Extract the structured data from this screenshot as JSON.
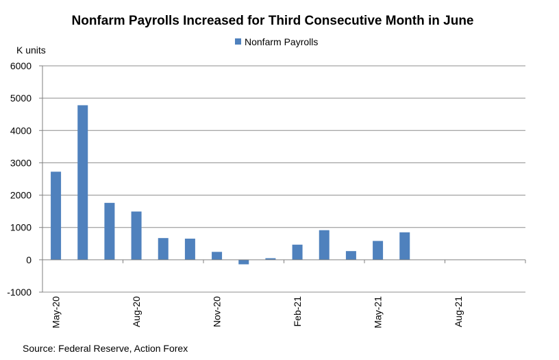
{
  "chart_data": {
    "type": "bar",
    "title": "Nonfarm Payrolls Increased for Third Consecutive Month in June",
    "ylabel": "K units",
    "xlabel": "",
    "legend": "top-center",
    "grid": true,
    "ylim": [
      -1000,
      6000
    ],
    "yticks": [
      -1000,
      0,
      1000,
      2000,
      3000,
      4000,
      5000,
      6000
    ],
    "categories": [
      "May-20",
      "Jun-20",
      "Jul-20",
      "Aug-20",
      "Sep-20",
      "Oct-20",
      "Nov-20",
      "Dec-20",
      "Jan-21",
      "Feb-21",
      "Mar-21",
      "Apr-21",
      "May-21",
      "Jun-21",
      "Jul-21",
      "Aug-21",
      "Sep-21",
      "Oct-21"
    ],
    "xtick_labels": [
      "May-20",
      "Aug-20",
      "Nov-20",
      "Feb-21",
      "May-21",
      "Aug-21"
    ],
    "series": [
      {
        "name": "Nonfarm Payrolls",
        "color": "#4F81BD",
        "values": [
          2725,
          4781,
          1761,
          1493,
          672,
          654,
          245,
          -140,
          49,
          468,
          916,
          269,
          583,
          850,
          null,
          null,
          null,
          null
        ]
      }
    ],
    "source": "Source: Federal Reserve, Action Forex"
  }
}
